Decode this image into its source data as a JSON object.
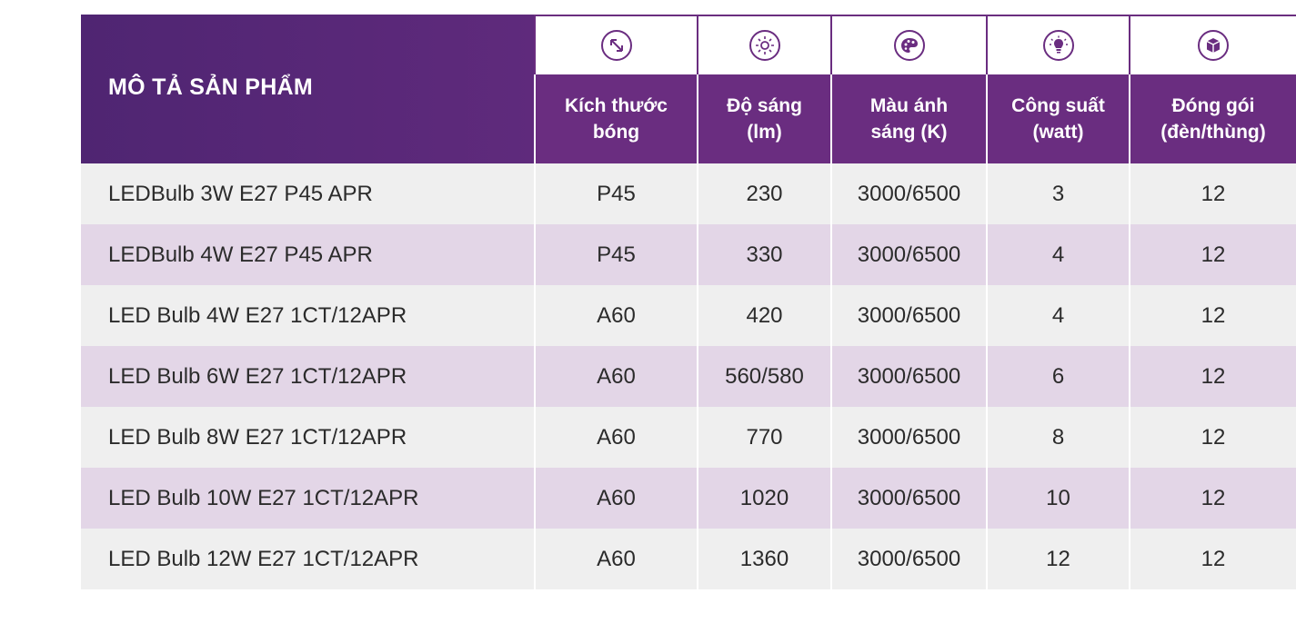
{
  "header": {
    "title": "MÔ TẢ SẢN PHẨM",
    "columns": [
      {
        "label": "Kích thước\nbóng",
        "icon": "resize-arrow-icon"
      },
      {
        "label": "Độ sáng\n(lm)",
        "icon": "sun-brightness-icon"
      },
      {
        "label": "Màu ánh\nsáng (K)",
        "icon": "color-palette-icon"
      },
      {
        "label": "Công suất\n(watt)",
        "icon": "lightbulb-icon"
      },
      {
        "label": "Đóng gói\n(đèn/thùng)",
        "icon": "package-box-icon"
      }
    ]
  },
  "rows": [
    {
      "desc": "LEDBulb 3W E27 P45 APR",
      "size": "P45",
      "lumen": "230",
      "color": "3000/6500",
      "watt": "3",
      "pack": "12"
    },
    {
      "desc": "LEDBulb 4W E27 P45 APR",
      "size": "P45",
      "lumen": "330",
      "color": "3000/6500",
      "watt": "4",
      "pack": "12"
    },
    {
      "desc": "LED Bulb 4W E27 1CT/12APR",
      "size": "A60",
      "lumen": "420",
      "color": "3000/6500",
      "watt": "4",
      "pack": "12"
    },
    {
      "desc": "LED Bulb 6W E27 1CT/12APR",
      "size": "A60",
      "lumen": "560/580",
      "color": "3000/6500",
      "watt": "6",
      "pack": "12"
    },
    {
      "desc": "LED Bulb 8W E27 1CT/12APR",
      "size": "A60",
      "lumen": "770",
      "color": "3000/6500",
      "watt": "8",
      "pack": "12"
    },
    {
      "desc": "LED Bulb 10W E27 1CT/12APR",
      "size": "A60",
      "lumen": "1020",
      "color": "3000/6500",
      "watt": "10",
      "pack": "12"
    },
    {
      "desc": "LED Bulb 12W E27 1CT/12APR",
      "size": "A60",
      "lumen": "1360",
      "color": "3000/6500",
      "watt": "12",
      "pack": "12"
    }
  ],
  "colors": {
    "header_dark": "#4f2572",
    "header_label": "#6a2d80",
    "row_odd": "#efefef",
    "row_even": "#e3d6e7"
  }
}
